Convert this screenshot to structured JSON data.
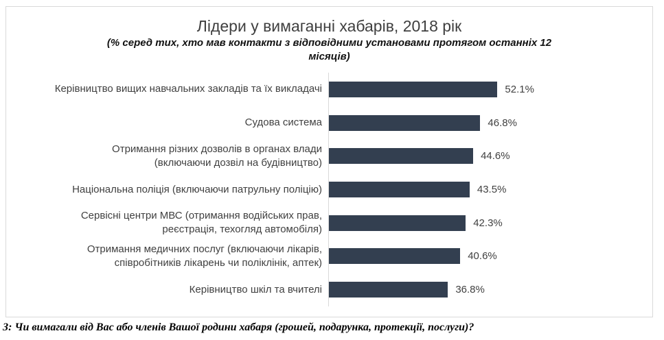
{
  "chart_data": {
    "type": "bar",
    "orientation": "horizontal",
    "title": "Лідери у вимаганні хабарів, 2018 рік",
    "subtitle": "(% серед тих, хто мав контакти з відповідними установами протягом останніх 12 місяців)",
    "subtitle_lines": [
      "(% серед тих, хто мав контакти з відповідними установами протягом останніх 12",
      "місяців)"
    ],
    "categories": [
      "Керівництво вищих навчальних закладів та їх викладачі",
      "Судова система",
      "Отримання різних дозволів в органах влади (включаючи дозвіл на будівництво)",
      "Національна поліція (включаючи патрульну поліцію)",
      "Сервісні центри МВС (отримання водійських прав, реєстрація, техогляд автомобіля)",
      "Отримання медичних послуг (включаючи лікарів, співробітників лікарень чи поліклінік, аптек)",
      "Керівництво шкіл та вчителі"
    ],
    "values": [
      52.1,
      46.8,
      44.6,
      43.5,
      42.3,
      40.6,
      36.8
    ],
    "value_labels": [
      "52.1%",
      "46.8%",
      "44.6%",
      "43.5%",
      "42.3%",
      "40.6%",
      "36.8%"
    ],
    "items": [
      {
        "label_lines": [
          "Керівництво вищих навчальних закладів та їх викладачі"
        ],
        "value": 52.1,
        "value_label": "52.1%"
      },
      {
        "label_lines": [
          "Судова система"
        ],
        "value": 46.8,
        "value_label": "46.8%"
      },
      {
        "label_lines": [
          "Отримання різних дозволів в органах влади",
          "(включаючи дозвіл на будівництво)"
        ],
        "value": 44.6,
        "value_label": "44.6%"
      },
      {
        "label_lines": [
          "Національна поліція (включаючи патрульну поліцію)"
        ],
        "value": 43.5,
        "value_label": "43.5%"
      },
      {
        "label_lines": [
          "Сервісні центри МВС (отримання водійських прав,",
          "реєстрація, техогляд автомобіля)"
        ],
        "value": 42.3,
        "value_label": "42.3%"
      },
      {
        "label_lines": [
          "Отримання медичних послуг (включаючи лікарів,",
          "співробітників лікарень чи поліклінік, аптек)"
        ],
        "value": 40.6,
        "value_label": "40.6%"
      },
      {
        "label_lines": [
          "Керівництво шкіл та вчителі"
        ],
        "value": 36.8,
        "value_label": "36.8%"
      }
    ],
    "xlim": [
      0,
      100
    ],
    "grid": false,
    "legend": false,
    "bar_color": "#333F50",
    "axis_line_color": "#D9D9D9",
    "frame_border_color": "#D9D9D9",
    "label_text_color": "#404040",
    "footnote": "З: Чи вимагали від Вас або членів Вашої родини хабаря (грошей, подарунка, протекції, послуги)?"
  }
}
